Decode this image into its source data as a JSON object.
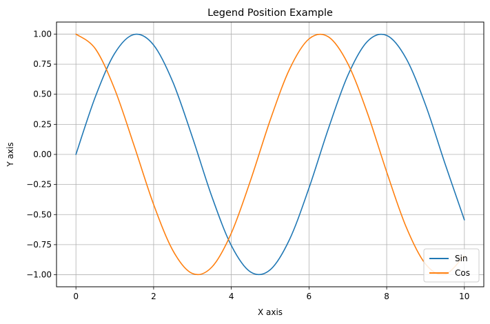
{
  "chart_data": {
    "type": "line",
    "title": "Legend Position Example",
    "xlabel": "X axis",
    "ylabel": "Y axis",
    "xlim": [
      -0.5,
      10.5
    ],
    "ylim": [
      -1.1,
      1.1
    ],
    "xticks": [
      0,
      2,
      4,
      6,
      8,
      10
    ],
    "xtick_labels": [
      "0",
      "2",
      "4",
      "6",
      "8",
      "10"
    ],
    "yticks": [
      -1.0,
      -0.75,
      -0.5,
      -0.25,
      0.0,
      0.25,
      0.5,
      0.75,
      1.0
    ],
    "ytick_labels": [
      "−1.00",
      "−0.75",
      "−0.50",
      "−0.25",
      "0.00",
      "0.25",
      "0.50",
      "0.75",
      "1.00"
    ],
    "grid": true,
    "legend_position": "lower-right",
    "x": [
      0,
      0.5,
      1,
      1.5,
      2,
      2.5,
      3,
      3.5,
      4,
      4.5,
      5,
      5.5,
      6,
      6.5,
      7,
      7.5,
      8,
      8.5,
      9,
      9.5,
      10
    ],
    "series": [
      {
        "name": "Sin",
        "color": "#1f77b4",
        "values": [
          0.0,
          0.479,
          0.841,
          0.997,
          0.909,
          0.598,
          0.141,
          -0.351,
          -0.757,
          -0.978,
          -0.959,
          -0.706,
          -0.279,
          0.215,
          0.657,
          0.938,
          0.989,
          0.798,
          0.412,
          -0.075,
          -0.544
        ]
      },
      {
        "name": "Cos",
        "color": "#ff7f0e",
        "values": [
          1.0,
          0.878,
          0.54,
          0.071,
          -0.416,
          -0.801,
          -0.99,
          -0.936,
          -0.654,
          -0.211,
          0.284,
          0.709,
          0.96,
          0.977,
          0.754,
          0.347,
          -0.146,
          -0.602,
          -0.911,
          -0.997,
          -0.839
        ]
      }
    ]
  }
}
